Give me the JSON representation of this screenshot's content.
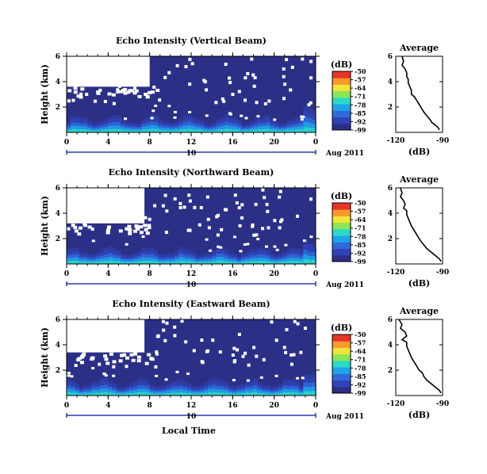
{
  "figure": {
    "month_label": "Aug 2011",
    "date_tick": "10",
    "xlabel_bottom": "Local Time",
    "average_title": "Average",
    "average_xlabel": "(dB)",
    "colorbar_title": "(dB)"
  },
  "chart_data": [
    {
      "type": "heatmap",
      "title": "Echo Intensity (Vertical Beam)",
      "xlabel": "",
      "ylabel": "Height (km)",
      "x_ticks": [
        "0",
        "4",
        "8",
        "12",
        "16",
        "20",
        "0"
      ],
      "xlim": [
        0,
        24
      ],
      "y_ticks": [
        "6",
        "4",
        "2"
      ],
      "ylim": [
        0,
        6
      ],
      "colorbar": {
        "label": "(dB)",
        "ticks": [
          "-50",
          "-57",
          "-64",
          "-71",
          "-78",
          "-85",
          "-92",
          "-99"
        ],
        "range": [
          -99,
          -50
        ],
        "colors": [
          "#2c2f86",
          "#3043b6",
          "#2e6bd9",
          "#1ea4e6",
          "#2cd9c8",
          "#8de55a",
          "#f1e43a",
          "#f59a2c",
          "#e7352a"
        ]
      },
      "missing_region": {
        "x_range": [
          0,
          8
        ],
        "y_range": [
          3.6,
          6
        ]
      },
      "near_surface_echo_dB": -78
    },
    {
      "type": "line",
      "title": "Average",
      "xlabel": "(dB)",
      "x_ticks": [
        "-120",
        "-90"
      ],
      "xlim": [
        -120,
        -90
      ],
      "y_ticks": [
        "6",
        "4",
        "2"
      ],
      "ylim": [
        0,
        6
      ],
      "series": [
        {
          "x": [
            -116,
            -115,
            -116,
            -114,
            -113,
            -113,
            -112,
            -112,
            -111,
            -110,
            -110,
            -108,
            -107,
            -106,
            -105,
            -104,
            -103,
            -102,
            -100,
            -98,
            -97,
            -95,
            -93,
            -92
          ],
          "y": [
            6,
            5.6,
            5.3,
            5,
            4.7,
            4.4,
            4.2,
            3.9,
            3.6,
            3.3,
            3.0,
            2.8,
            2.6,
            2.4,
            2.2,
            2.0,
            1.8,
            1.6,
            1.3,
            1.0,
            0.8,
            0.6,
            0.4,
            0.2
          ]
        }
      ]
    },
    {
      "type": "heatmap",
      "title": "Echo Intensity (Northward Beam)",
      "xlabel": "",
      "ylabel": "Height (km)",
      "x_ticks": [
        "0",
        "4",
        "8",
        "12",
        "16",
        "20",
        "0"
      ],
      "xlim": [
        0,
        24
      ],
      "y_ticks": [
        "6",
        "4",
        "2"
      ],
      "ylim": [
        0,
        6
      ],
      "colorbar": {
        "label": "(dB)",
        "ticks": [
          "-50",
          "-57",
          "-64",
          "-71",
          "-78",
          "-85",
          "-92",
          "-99"
        ],
        "range": [
          -99,
          -50
        ],
        "colors": [
          "#2c2f86",
          "#3043b6",
          "#2e6bd9",
          "#1ea4e6",
          "#2cd9c8",
          "#8de55a",
          "#f1e43a",
          "#f59a2c",
          "#e7352a"
        ]
      },
      "missing_region": {
        "x_range": [
          0,
          7.5
        ],
        "y_range": [
          3.2,
          6
        ]
      },
      "near_surface_echo_dB": -78
    },
    {
      "type": "line",
      "title": "Average",
      "xlabel": "(dB)",
      "x_ticks": [
        "-120",
        "-90"
      ],
      "xlim": [
        -120,
        -90
      ],
      "y_ticks": [
        "6",
        "4",
        "2"
      ],
      "ylim": [
        0,
        6
      ],
      "series": [
        {
          "x": [
            -117,
            -116,
            -117,
            -115,
            -114,
            -115,
            -113,
            -113,
            -112,
            -111,
            -110,
            -109,
            -108,
            -107,
            -106,
            -105,
            -104,
            -102,
            -100,
            -98,
            -96,
            -94,
            -92,
            -91
          ],
          "y": [
            6,
            5.6,
            5.3,
            5,
            4.7,
            4.4,
            4.2,
            3.9,
            3.6,
            3.3,
            3.0,
            2.8,
            2.6,
            2.4,
            2.2,
            2.0,
            1.8,
            1.5,
            1.2,
            1.0,
            0.8,
            0.6,
            0.4,
            0.2
          ]
        }
      ]
    },
    {
      "type": "heatmap",
      "title": "Echo Intensity (Eastward Beam)",
      "xlabel": "Local Time",
      "ylabel": "Height (km)",
      "x_ticks": [
        "0",
        "4",
        "8",
        "12",
        "16",
        "20",
        "0"
      ],
      "xlim": [
        0,
        24
      ],
      "y_ticks": [
        "6",
        "4",
        "2"
      ],
      "ylim": [
        0,
        6
      ],
      "colorbar": {
        "label": "(dB)",
        "ticks": [
          "-50",
          "-57",
          "-64",
          "-71",
          "-78",
          "-85",
          "-92",
          "-99"
        ],
        "range": [
          -99,
          -50
        ],
        "colors": [
          "#2c2f86",
          "#3043b6",
          "#2e6bd9",
          "#1ea4e6",
          "#2cd9c8",
          "#8de55a",
          "#f1e43a",
          "#f59a2c",
          "#e7352a"
        ]
      },
      "missing_region": {
        "x_range": [
          0,
          7.5
        ],
        "y_range": [
          3.4,
          6
        ]
      },
      "near_surface_echo_dB": -78
    },
    {
      "type": "line",
      "title": "Average",
      "xlabel": "(dB)",
      "x_ticks": [
        "-120",
        "-90"
      ],
      "xlim": [
        -120,
        -90
      ],
      "y_ticks": [
        "6",
        "4",
        "2"
      ],
      "ylim": [
        0,
        6
      ],
      "series": [
        {
          "x": [
            -118,
            -116,
            -117,
            -114,
            -113,
            -116,
            -113,
            -113,
            -112,
            -111,
            -110,
            -109,
            -108,
            -107,
            -106,
            -105,
            -103,
            -102,
            -100,
            -98,
            -96,
            -94,
            -92,
            -91
          ],
          "y": [
            6,
            5.6,
            5.3,
            5,
            4.7,
            4.4,
            4.2,
            3.9,
            3.6,
            3.3,
            3.0,
            2.8,
            2.6,
            2.4,
            2.2,
            2.0,
            1.8,
            1.5,
            1.2,
            1.0,
            0.8,
            0.6,
            0.4,
            0.2
          ]
        }
      ]
    }
  ]
}
